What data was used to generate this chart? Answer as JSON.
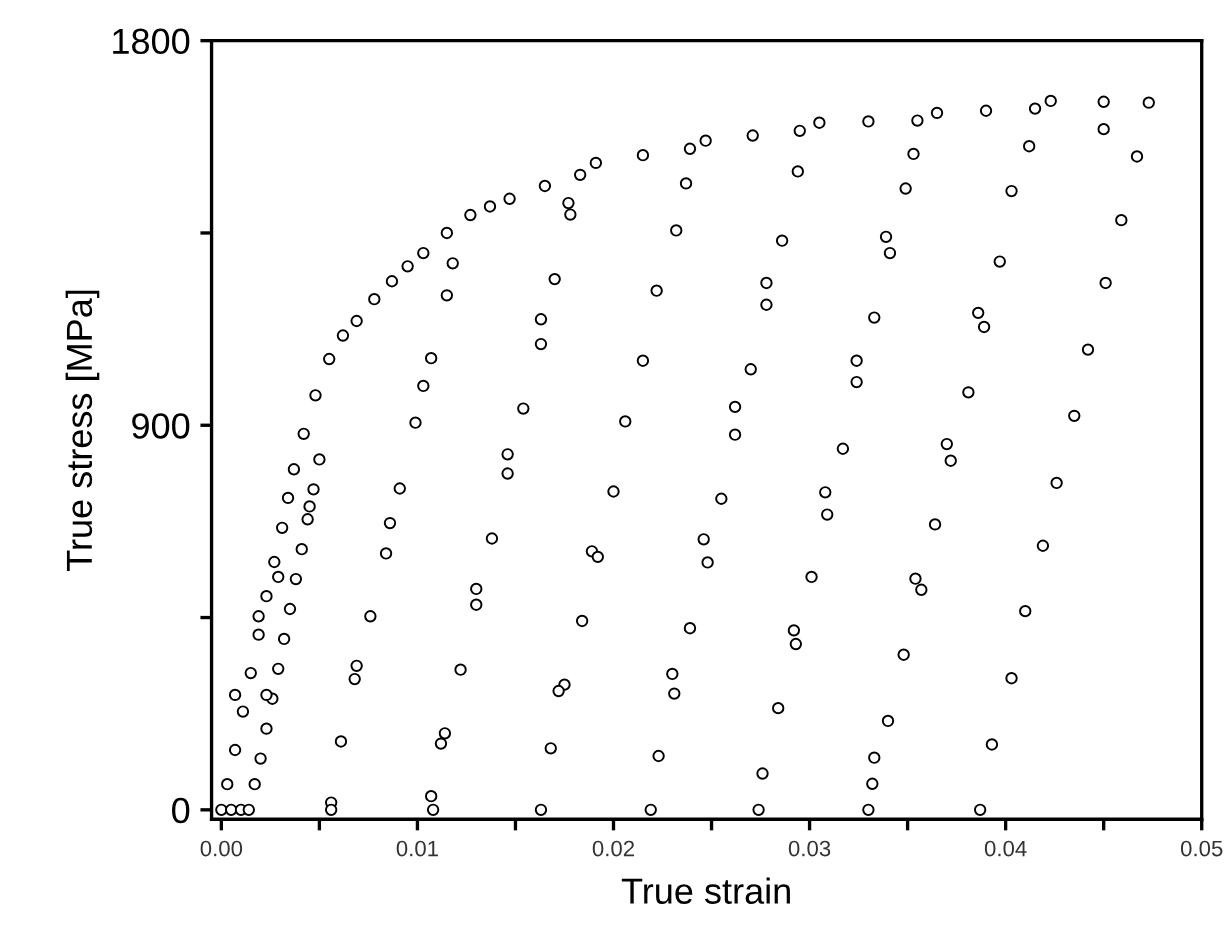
{
  "chart_data": {
    "type": "scatter",
    "xlabel": "True strain",
    "ylabel": "True stress [MPa]",
    "xlim": [
      -0.0005,
      0.05
    ],
    "ylim": [
      -22,
      1800
    ],
    "xticks": [
      {
        "value": 0,
        "label": "0.00"
      },
      {
        "value": 0.005,
        "label": null
      },
      {
        "value": 0.01,
        "label": "0.01"
      },
      {
        "value": 0.015,
        "label": null
      },
      {
        "value": 0.02,
        "label": "0.02"
      },
      {
        "value": 0.025,
        "label": null
      },
      {
        "value": 0.03,
        "label": "0.03"
      },
      {
        "value": 0.035,
        "label": null
      },
      {
        "value": 0.04,
        "label": "0.04"
      },
      {
        "value": 0.045,
        "label": null
      },
      {
        "value": 0.05,
        "label": "0.05"
      }
    ],
    "yticks": [
      0,
      {
        "value": 450,
        "label": null
      },
      900,
      {
        "value": 1350,
        "label": null
      },
      1800
    ],
    "marker": "circle",
    "grid": false,
    "series": [
      {
        "color": "#000000",
        "x": [
          0.0,
          0.0003,
          0.0007,
          0.0011,
          0.0015,
          0.0019,
          0.0023,
          0.0027,
          0.0031,
          0.0034,
          0.0037,
          0.0042,
          0.0048,
          0.0055,
          0.0062,
          0.0069,
          0.0078,
          0.0087,
          0.0095,
          0.0103,
          0.0115,
          0.0127,
          0.0137,
          0.0147,
          0.0165,
          0.0183,
          0.0191,
          0.0215,
          0.0239,
          0.0247,
          0.0271,
          0.0295,
          0.0305,
          0.033,
          0.0355,
          0.0365,
          0.039,
          0.0415,
          0.0423,
          0.045,
          0.0473,
          0.0005,
          0.001,
          0.0014,
          0.0017,
          0.002,
          0.0023,
          0.0026,
          0.0029,
          0.0032,
          0.0035,
          0.0038,
          0.0041,
          0.0044,
          0.0047,
          0.005,
          0.0007,
          0.0019,
          0.0045,
          0.0023,
          0.0029,
          0.0115,
          0.0107,
          0.0103,
          0.0099,
          0.0146,
          0.0154,
          0.0163,
          0.0163,
          0.017,
          0.0178,
          0.0215,
          0.0206,
          0.0222,
          0.0232,
          0.0237,
          0.0262,
          0.0262,
          0.027,
          0.0278,
          0.0278,
          0.0286,
          0.0294,
          0.0317,
          0.0324,
          0.0324,
          0.0333,
          0.0341,
          0.0339,
          0.0349,
          0.0353,
          0.037,
          0.0381,
          0.0386,
          0.0389,
          0.0397,
          0.0403,
          0.0412,
          0.0435,
          0.0442,
          0.0451,
          0.0459,
          0.0467,
          0.045,
          0.0118,
          0.0177,
          0.0146,
          0.0091,
          0.0086,
          0.0084,
          0.0076,
          0.0069,
          0.0068,
          0.0061,
          0.0056,
          0.0056,
          0.0138,
          0.013,
          0.013,
          0.0122,
          0.0114,
          0.0112,
          0.0107,
          0.0108,
          0.02,
          0.0189,
          0.0192,
          0.0184,
          0.0175,
          0.0172,
          0.0168,
          0.0163,
          0.0255,
          0.0246,
          0.0248,
          0.0239,
          0.023,
          0.0231,
          0.0223,
          0.0219,
          0.0308,
          0.0309,
          0.0301,
          0.0292,
          0.0293,
          0.0284,
          0.0276,
          0.0274,
          0.0372,
          0.0364,
          0.0354,
          0.0357,
          0.0348,
          0.034,
          0.0333,
          0.0332,
          0.033,
          0.0426,
          0.0419,
          0.041,
          0.0403,
          0.0393,
          0.0387
        ],
        "values": [
          0,
          60,
          140,
          230,
          320,
          410,
          500,
          580,
          660,
          730,
          797,
          880,
          970,
          1055,
          1110,
          1144,
          1195,
          1237,
          1272,
          1303,
          1350,
          1392,
          1412,
          1430,
          1460,
          1486,
          1514,
          1532,
          1547,
          1566,
          1578,
          1589,
          1608,
          1611,
          1613,
          1631,
          1636,
          1641,
          1659,
          1657,
          1655,
          0,
          0,
          0,
          60,
          120,
          190,
          260,
          330,
          400,
          470,
          540,
          610,
          680,
          750,
          820,
          269,
          453,
          710,
          269,
          545,
          1204,
          1057,
          992,
          906,
          832,
          939,
          1090,
          1148,
          1242,
          1393,
          1051,
          909,
          1215,
          1356,
          1466,
          878,
          943,
          1031,
          1182,
          1233,
          1332,
          1494,
          845,
          1001,
          1051,
          1152,
          1303,
          1341,
          1454,
          1535,
          856,
          977,
          1163,
          1130,
          1283,
          1448,
          1553,
          922,
          1077,
          1233,
          1380,
          1529,
          1593,
          1279,
          1420,
          787,
          752,
          671,
          600,
          453,
          337,
          306,
          160,
          17,
          0,
          635,
          517,
          480,
          328,
          179,
          155,
          32,
          0,
          745,
          605,
          592,
          442,
          293,
          278,
          144,
          0,
          728,
          633,
          579,
          425,
          318,
          272,
          126,
          0,
          743,
          691,
          545,
          420,
          388,
          238,
          85,
          0,
          817,
          668,
          541,
          515,
          363,
          208,
          122,
          61,
          0,
          765,
          618,
          465,
          308,
          153,
          0
        ]
      }
    ]
  }
}
